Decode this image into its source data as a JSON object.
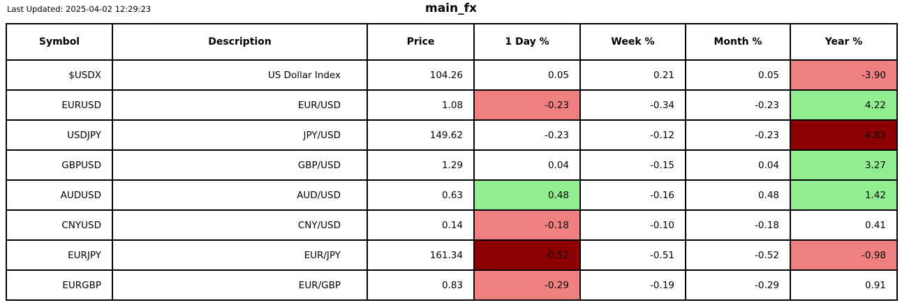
{
  "meta": {
    "last_updated": "Last Updated: 2025-04-02 12:29:23",
    "title": "main_fx"
  },
  "colors": {
    "lightred": {
      "bg": "#f08080",
      "dots": true
    },
    "lightgreen": {
      "bg": "#90ee90",
      "dots": false
    },
    "darkred": {
      "bg": "#8e0000",
      "dots": false
    }
  },
  "table": {
    "columns": [
      "Symbol",
      "Description",
      "Price",
      "1 Day %",
      "Week %",
      "Month %",
      "Year %"
    ],
    "rows": [
      {
        "symbol": "$USDX",
        "description": "US Dollar Index",
        "price": "104.26",
        "day": "0.05",
        "week": "0.21",
        "month": "0.05",
        "year": "-3.90",
        "day_bg": "none",
        "week_bg": "none",
        "month_bg": "none",
        "year_bg": "lightred"
      },
      {
        "symbol": "EURUSD",
        "description": "EUR/USD",
        "price": "1.08",
        "day": "-0.23",
        "week": "-0.34",
        "month": "-0.23",
        "year": "4.22",
        "day_bg": "lightred",
        "week_bg": "none",
        "month_bg": "none",
        "year_bg": "lightgreen"
      },
      {
        "symbol": "USDJPY",
        "description": "JPY/USD",
        "price": "149.62",
        "day": "-0.23",
        "week": "-0.12",
        "month": "-0.23",
        "year": "-4.83",
        "day_bg": "none",
        "week_bg": "none",
        "month_bg": "none",
        "year_bg": "darkred"
      },
      {
        "symbol": "GBPUSD",
        "description": "GBP/USD",
        "price": "1.29",
        "day": "0.04",
        "week": "-0.15",
        "month": "0.04",
        "year": "3.27",
        "day_bg": "none",
        "week_bg": "none",
        "month_bg": "none",
        "year_bg": "lightgreen"
      },
      {
        "symbol": "AUDUSD",
        "description": "AUD/USD",
        "price": "0.63",
        "day": "0.48",
        "week": "-0.16",
        "month": "0.48",
        "year": "1.42",
        "day_bg": "lightgreen",
        "week_bg": "none",
        "month_bg": "none",
        "year_bg": "lightgreen"
      },
      {
        "symbol": "CNYUSD",
        "description": "CNY/USD",
        "price": "0.14",
        "day": "-0.18",
        "week": "-0.10",
        "month": "-0.18",
        "year": "0.41",
        "day_bg": "lightred",
        "week_bg": "none",
        "month_bg": "none",
        "year_bg": "none"
      },
      {
        "symbol": "EURJPY",
        "description": "EUR/JPY",
        "price": "161.34",
        "day": "-0.52",
        "week": "-0.51",
        "month": "-0.52",
        "year": "-0.98",
        "day_bg": "darkred",
        "week_bg": "none",
        "month_bg": "none",
        "year_bg": "lightred"
      },
      {
        "symbol": "EURGBP",
        "description": "EUR/GBP",
        "price": "0.83",
        "day": "-0.29",
        "week": "-0.19",
        "month": "-0.29",
        "year": "0.91",
        "day_bg": "lightred",
        "week_bg": "none",
        "month_bg": "none",
        "year_bg": "none"
      }
    ]
  },
  "chart_data": {
    "type": "table",
    "title": "main_fx",
    "columns": [
      "Symbol",
      "Description",
      "Price",
      "1 Day %",
      "Week %",
      "Month %",
      "Year %"
    ],
    "rows": [
      [
        "$USDX",
        "US Dollar Index",
        "104.26",
        "0.05",
        "0.21",
        "0.05",
        "-3.90"
      ],
      [
        "EURUSD",
        "EUR/USD",
        "1.08",
        "-0.23",
        "-0.34",
        "-0.23",
        "4.22"
      ],
      [
        "USDJPY",
        "JPY/USD",
        "149.62",
        "-0.23",
        "-0.12",
        "-0.23",
        "-4.83"
      ],
      [
        "GBPUSD",
        "GBP/USD",
        "1.29",
        "0.04",
        "-0.15",
        "0.04",
        "3.27"
      ],
      [
        "AUDUSD",
        "AUD/USD",
        "0.63",
        "0.48",
        "-0.16",
        "0.48",
        "1.42"
      ],
      [
        "CNYUSD",
        "CNY/USD",
        "0.14",
        "-0.18",
        "-0.10",
        "-0.18",
        "0.41"
      ],
      [
        "EURJPY",
        "EUR/JPY",
        "161.34",
        "-0.52",
        "-0.51",
        "-0.52",
        "-0.98"
      ],
      [
        "EURGBP",
        "EUR/GBP",
        "0.83",
        "-0.29",
        "-0.19",
        "-0.29",
        "0.91"
      ]
    ],
    "highlights": [
      {
        "row": "$USDX",
        "column": "Year %",
        "color": "lightred"
      },
      {
        "row": "EURUSD",
        "column": "1 Day %",
        "color": "lightred"
      },
      {
        "row": "EURUSD",
        "column": "Year %",
        "color": "lightgreen"
      },
      {
        "row": "USDJPY",
        "column": "Year %",
        "color": "darkred"
      },
      {
        "row": "GBPUSD",
        "column": "Year %",
        "color": "lightgreen"
      },
      {
        "row": "AUDUSD",
        "column": "1 Day %",
        "color": "lightgreen"
      },
      {
        "row": "AUDUSD",
        "column": "Year %",
        "color": "lightgreen"
      },
      {
        "row": "CNYUSD",
        "column": "1 Day %",
        "color": "lightred"
      },
      {
        "row": "EURJPY",
        "column": "1 Day %",
        "color": "darkred"
      },
      {
        "row": "EURJPY",
        "column": "Year %",
        "color": "lightred"
      },
      {
        "row": "EURGBP",
        "column": "1 Day %",
        "color": "lightred"
      }
    ]
  }
}
